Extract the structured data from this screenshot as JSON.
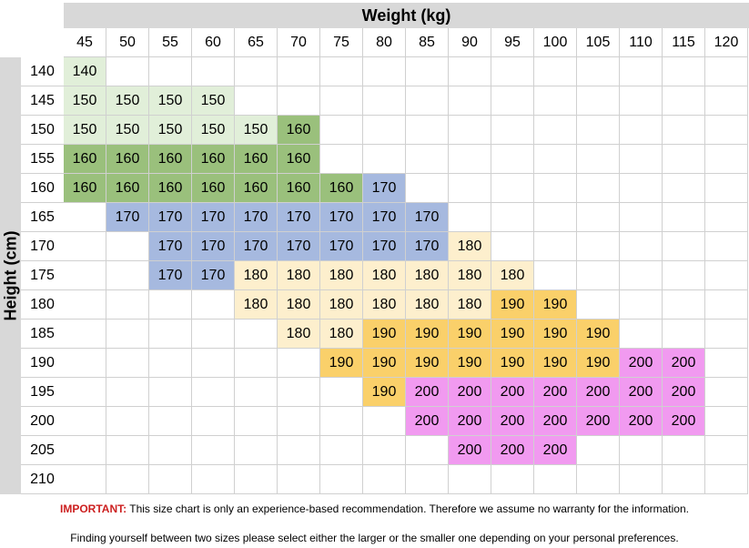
{
  "weight_title": "Weight (kg)",
  "height_title": "Height (cm)",
  "weights": [
    "45",
    "50",
    "55",
    "60",
    "65",
    "70",
    "75",
    "80",
    "85",
    "90",
    "95",
    "100",
    "105",
    "110",
    "115",
    "120"
  ],
  "heights": [
    "140",
    "145",
    "150",
    "155",
    "160",
    "165",
    "170",
    "175",
    "180",
    "185",
    "190",
    "195",
    "200",
    "205",
    "210"
  ],
  "size_colors": {
    "140": "#e1efd9",
    "150": "#e1efd9",
    "160": "#9ac07c",
    "170": "#a6b9df",
    "180": "#fdefcd",
    "190": "#fad06a",
    "200": "#f19af0"
  },
  "grid": [
    [
      "140",
      "",
      "",
      "",
      "",
      "",
      "",
      "",
      "",
      "",
      "",
      "",
      "",
      "",
      "",
      ""
    ],
    [
      "150",
      "150",
      "150",
      "150",
      "",
      "",
      "",
      "",
      "",
      "",
      "",
      "",
      "",
      "",
      "",
      ""
    ],
    [
      "150",
      "150",
      "150",
      "150",
      "150",
      "160",
      "",
      "",
      "",
      "",
      "",
      "",
      "",
      "",
      "",
      ""
    ],
    [
      "160",
      "160",
      "160",
      "160",
      "160",
      "160",
      "",
      "",
      "",
      "",
      "",
      "",
      "",
      "",
      "",
      ""
    ],
    [
      "160",
      "160",
      "160",
      "160",
      "160",
      "160",
      "160",
      "170",
      "",
      "",
      "",
      "",
      "",
      "",
      "",
      ""
    ],
    [
      "",
      "170",
      "170",
      "170",
      "170",
      "170",
      "170",
      "170",
      "170",
      "",
      "",
      "",
      "",
      "",
      "",
      ""
    ],
    [
      "",
      "",
      "170",
      "170",
      "170",
      "170",
      "170",
      "170",
      "170",
      "180",
      "",
      "",
      "",
      "",
      "",
      ""
    ],
    [
      "",
      "",
      "170",
      "170",
      "180",
      "180",
      "180",
      "180",
      "180",
      "180",
      "180",
      "",
      "",
      "",
      "",
      ""
    ],
    [
      "",
      "",
      "",
      "",
      "180",
      "180",
      "180",
      "180",
      "180",
      "180",
      "190",
      "190",
      "",
      "",
      "",
      ""
    ],
    [
      "",
      "",
      "",
      "",
      "",
      "180",
      "180",
      "190",
      "190",
      "190",
      "190",
      "190",
      "190",
      "",
      "",
      ""
    ],
    [
      "",
      "",
      "",
      "",
      "",
      "",
      "190",
      "190",
      "190",
      "190",
      "190",
      "190",
      "190",
      "200",
      "200",
      ""
    ],
    [
      "",
      "",
      "",
      "",
      "",
      "",
      "",
      "190",
      "200",
      "200",
      "200",
      "200",
      "200",
      "200",
      "200",
      ""
    ],
    [
      "",
      "",
      "",
      "",
      "",
      "",
      "",
      "",
      "200",
      "200",
      "200",
      "200",
      "200",
      "200",
      "200",
      ""
    ],
    [
      "",
      "",
      "",
      "",
      "",
      "",
      "",
      "",
      "",
      "200",
      "200",
      "200",
      "",
      "",
      "",
      ""
    ],
    [
      "",
      "",
      "",
      "",
      "",
      "",
      "",
      "",
      "",
      "",
      "",
      "",
      "",
      "",
      "",
      ""
    ]
  ],
  "note_important_label": "IMPORTANT:",
  "note_important_text": " This size chart is only an experience-based recommendation. Therefore we assume no warranty for the information.",
  "note_second": "Finding yourself between two sizes please select either the larger or the smaller one depending on your personal preferences."
}
